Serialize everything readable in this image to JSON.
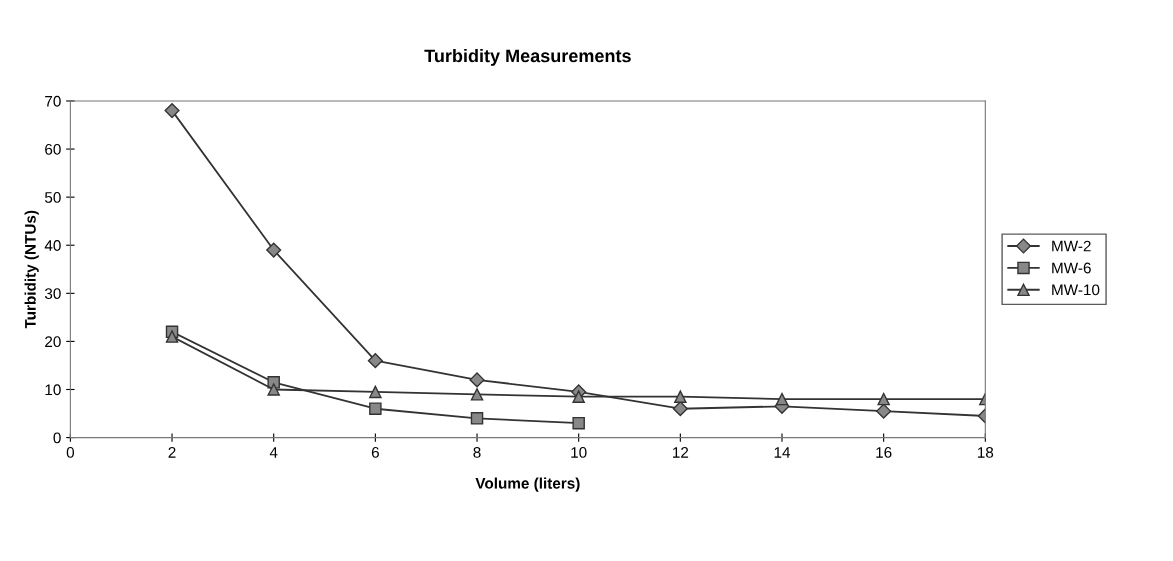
{
  "chart_data": {
    "type": "line",
    "title": "Turbidity Measurements",
    "xlabel": "Volume (liters)",
    "ylabel": "Turbidity (NTUs)",
    "series": [
      {
        "name": "MW-2",
        "color": "#333333",
        "marker": "diamond",
        "x": [
          2,
          4,
          6,
          8,
          10,
          12,
          14,
          16,
          18
        ],
        "values": [
          68,
          39,
          16,
          12,
          9.5,
          6,
          6.5,
          5.5,
          4.5
        ]
      },
      {
        "name": "MW-6",
        "color": "#333333",
        "marker": "square",
        "x": [
          2,
          4,
          6,
          8,
          10
        ],
        "values": [
          22,
          11.5,
          6,
          4,
          3
        ]
      },
      {
        "name": "MW-10",
        "color": "#333333",
        "marker": "triangle",
        "x": [
          2,
          4,
          6,
          8,
          10,
          12,
          14,
          16,
          18
        ],
        "values": [
          21,
          10,
          9.5,
          9,
          8.5,
          8.5,
          8,
          8,
          8
        ]
      }
    ],
    "xlim": [
      0,
      18
    ],
    "xticks": [
      0,
      2,
      4,
      6,
      8,
      10,
      12,
      14,
      16,
      18
    ],
    "ylim": [
      0,
      70
    ],
    "yticks": [
      0,
      10,
      20,
      30,
      40,
      50,
      60,
      70
    ],
    "grid": false,
    "legend": "right",
    "line_style": "solid"
  }
}
